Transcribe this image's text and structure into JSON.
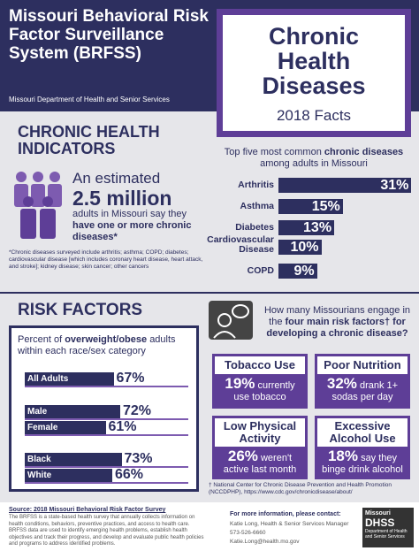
{
  "header": {
    "title": "Missouri Behavioral Risk Factor Surveillance System (BRFSS)",
    "subtitle": "Missouri Department of Health and Senior Services"
  },
  "title_box": {
    "title": "Chronic Health Diseases",
    "subtitle": "2018 Facts"
  },
  "indicators": {
    "heading": "CHRONIC HEALTH INDICATORS",
    "lead": "An estimated",
    "figure": "2.5 million",
    "text": "adults in Missouri say they",
    "text_bold": "have one or more chronic diseases*",
    "footnote": "*Chronic diseases surveyed include arthritis; asthma; COPD; diabetes; cardiovascular disease [which includes coronary heart disease, heart attack, and stroke]; kidney disease; skin cancer; other cancers"
  },
  "top_diseases": {
    "type": "bar",
    "title_parts": [
      "Top five most common",
      "chronic diseases",
      "among adults in Missouri"
    ],
    "categories": [
      "Arthritis",
      "Asthma",
      "Diabetes",
      "Cardiovascular Disease",
      "COPD"
    ],
    "values": [
      31,
      15,
      13,
      10,
      9
    ],
    "value_labels": [
      "31%",
      "15%",
      "13%",
      "10%",
      "9%"
    ],
    "color": "#2d2f5f"
  },
  "risk_factors": {
    "heading": "RISK FACTORS",
    "question_parts": [
      "How many Missourians engage in the",
      "four main risk factors†",
      "for developing a chronic disease?"
    ],
    "boxes": [
      {
        "title": "Tobacco Use",
        "figure": "19%",
        "text": "currently use tobacco"
      },
      {
        "title": "Poor Nutrition",
        "figure": "32%",
        "text": "drank 1+ sodas per day"
      },
      {
        "title": "Low Physical Activity",
        "figure": "26%",
        "text": "weren't active last month"
      },
      {
        "title": "Excessive Alcohol Use",
        "figure": "18%",
        "text": "say they binge drink alcohol"
      }
    ],
    "footnote": "† National Center for Chronic Disease Prevention and Health Promotion (NCCDPHP), https://www.cdc.gov/chronicdisease/about/"
  },
  "overweight": {
    "type": "bar",
    "title_parts": [
      "Percent of",
      "overweight/obese",
      "adults within each race/sex category"
    ],
    "categories": [
      "All Adults",
      "Male",
      "Female",
      "Black",
      "White"
    ],
    "values": [
      67,
      72,
      61,
      73,
      66
    ],
    "value_labels": [
      "67%",
      "72%",
      "61%",
      "73%",
      "66%"
    ],
    "color": "#2d2f5f"
  },
  "footer": {
    "source_title": "Source: 2018 Missouri Behavioral Risk Factor Survey",
    "source_text": "The BRFSS is a state-based health survey that annually collects information on health conditions, behaviors, preventive practices, and access to health care. BRFSS data are used to identify emerging health problems, establish health objectives and track their progress, and develop and evaluate public health policies and programs to address identified problems.",
    "contact_title": "For more information, please contact:",
    "contact_lines": [
      "Katie Long, Health & Senior Services Manager",
      "573-526-6660",
      "Katie.Long@health.mo.gov"
    ],
    "logo": [
      "Missouri",
      "DHSS",
      "Department of Health and Senior Services"
    ]
  }
}
